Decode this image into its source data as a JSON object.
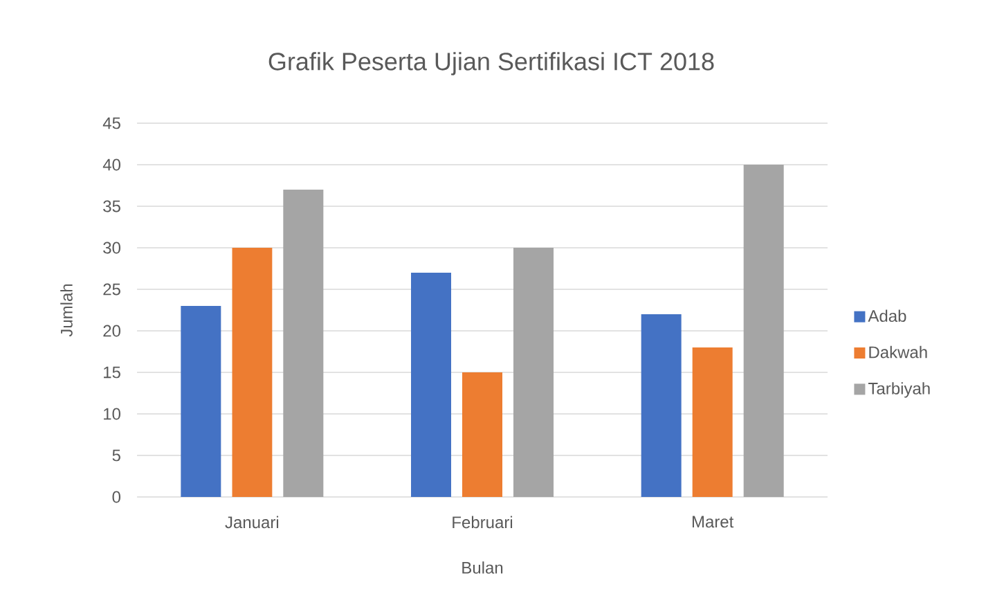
{
  "chart_data": {
    "type": "bar",
    "title": "Grafik Peserta Ujian Sertifikasi ICT 2018",
    "xlabel": "Bulan",
    "ylabel": "Jumlah",
    "categories": [
      "Januari",
      "Februari",
      "Maret"
    ],
    "series": [
      {
        "name": "Adab",
        "color": "#4472c4",
        "values": [
          23,
          27,
          22
        ]
      },
      {
        "name": "Dakwah",
        "color": "#ed7d31",
        "values": [
          30,
          15,
          18
        ]
      },
      {
        "name": "Tarbiyah",
        "color": "#a5a5a5",
        "values": [
          37,
          30,
          40
        ]
      }
    ],
    "ylim": [
      0,
      45
    ],
    "yticks": [
      0,
      5,
      10,
      15,
      20,
      25,
      30,
      35,
      40,
      45
    ],
    "grid": "y",
    "legend": "right"
  }
}
